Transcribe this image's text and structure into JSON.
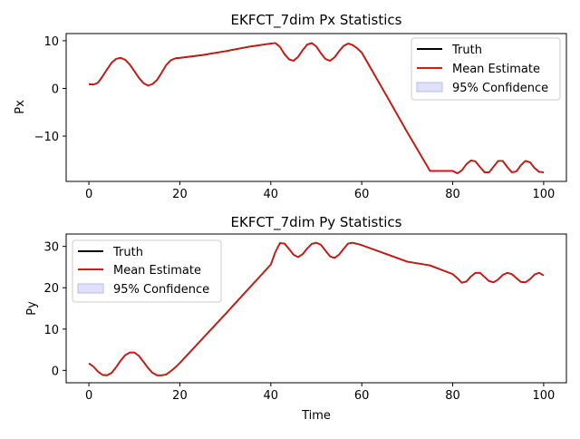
{
  "chart_data": [
    {
      "type": "line",
      "title": "EKFCT_7dim Px Statistics",
      "xlabel": "",
      "ylabel": "Px",
      "xlim": [
        -5,
        105
      ],
      "ylim": [
        -19.5,
        11.5
      ],
      "xticks": [
        0,
        20,
        40,
        60,
        80,
        100
      ],
      "yticks": [
        10,
        0,
        -10
      ],
      "ytick_labels": [
        "10",
        "0",
        "−10"
      ],
      "legend": {
        "placement": "top-right",
        "entries": [
          "Truth",
          "Mean Estimate",
          "95% Confidence"
        ]
      },
      "series": [
        {
          "name": "Truth",
          "color": "#000000",
          "x": [
            0,
            1,
            2,
            3,
            4,
            5,
            6,
            7,
            8,
            9,
            10,
            11,
            12,
            13,
            14,
            15,
            16,
            17,
            18,
            19,
            20,
            25,
            30,
            35,
            40,
            41,
            42,
            43,
            44,
            45,
            46,
            47,
            48,
            49,
            50,
            51,
            52,
            53,
            54,
            55,
            56,
            57,
            58,
            59,
            60,
            65,
            70,
            75,
            80,
            81,
            82,
            83,
            84,
            85,
            86,
            87,
            88,
            89,
            90,
            91,
            92,
            93,
            94,
            95,
            96,
            97,
            98,
            99,
            100
          ],
          "y": [
            0.9,
            0.8,
            1.2,
            2.5,
            4.0,
            5.4,
            6.2,
            6.4,
            6.0,
            5.0,
            3.6,
            2.2,
            1.1,
            0.6,
            0.9,
            1.8,
            3.3,
            4.9,
            5.9,
            6.3,
            6.4,
            7.0,
            7.8,
            8.7,
            9.4,
            9.5,
            8.7,
            7.2,
            6.1,
            5.8,
            6.6,
            8.0,
            9.2,
            9.5,
            8.8,
            7.4,
            6.2,
            5.8,
            6.5,
            7.8,
            8.9,
            9.4,
            9.1,
            8.4,
            7.5,
            -0.8,
            -9.2,
            -17.3,
            -17.3,
            -17.8,
            -17.2,
            -15.9,
            -15.1,
            -15.3,
            -16.5,
            -17.6,
            -17.6,
            -16.4,
            -15.2,
            -15.2,
            -16.5,
            -17.6,
            -17.4,
            -16.1,
            -15.2,
            -15.5,
            -16.7,
            -17.5,
            -17.6
          ]
        },
        {
          "name": "Mean Estimate",
          "color": "#e8120b",
          "x": [
            0,
            1,
            2,
            3,
            4,
            5,
            6,
            7,
            8,
            9,
            10,
            11,
            12,
            13,
            14,
            15,
            16,
            17,
            18,
            19,
            20,
            25,
            30,
            35,
            40,
            41,
            42,
            43,
            44,
            45,
            46,
            47,
            48,
            49,
            50,
            51,
            52,
            53,
            54,
            55,
            56,
            57,
            58,
            59,
            60,
            65,
            70,
            75,
            80,
            81,
            82,
            83,
            84,
            85,
            86,
            87,
            88,
            89,
            90,
            91,
            92,
            93,
            94,
            95,
            96,
            97,
            98,
            99,
            100
          ],
          "y": [
            0.9,
            0.8,
            1.2,
            2.5,
            4.0,
            5.4,
            6.2,
            6.4,
            6.0,
            5.0,
            3.6,
            2.2,
            1.1,
            0.6,
            0.9,
            1.8,
            3.3,
            4.9,
            5.9,
            6.3,
            6.4,
            7.0,
            7.8,
            8.7,
            9.4,
            9.5,
            8.7,
            7.2,
            6.1,
            5.8,
            6.6,
            8.0,
            9.2,
            9.5,
            8.8,
            7.4,
            6.2,
            5.8,
            6.5,
            7.8,
            8.9,
            9.4,
            9.1,
            8.4,
            7.5,
            -0.8,
            -9.2,
            -17.3,
            -17.3,
            -17.8,
            -17.2,
            -15.9,
            -15.1,
            -15.3,
            -16.5,
            -17.6,
            -17.6,
            -16.4,
            -15.2,
            -15.2,
            -16.5,
            -17.6,
            -17.4,
            -16.1,
            -15.2,
            -15.5,
            -16.7,
            -17.5,
            -17.6
          ]
        }
      ]
    },
    {
      "type": "line",
      "title": "EKFCT_7dim Py Statistics",
      "xlabel": "Time",
      "ylabel": "Py",
      "xlim": [
        -5,
        105
      ],
      "ylim": [
        -3.0,
        33.0
      ],
      "xticks": [
        0,
        20,
        40,
        60,
        80,
        100
      ],
      "yticks": [
        0,
        10,
        20,
        30
      ],
      "ytick_labels": [
        "0",
        "10",
        "20",
        "30"
      ],
      "legend": {
        "placement": "top-left",
        "entries": [
          "Truth",
          "Mean Estimate",
          "95% Confidence"
        ]
      },
      "series": [
        {
          "name": "Truth",
          "color": "#000000",
          "x": [
            0,
            1,
            2,
            3,
            4,
            5,
            6,
            7,
            8,
            9,
            10,
            11,
            12,
            13,
            14,
            15,
            16,
            17,
            18,
            19,
            20,
            25,
            30,
            35,
            40,
            41,
            42,
            43,
            44,
            45,
            46,
            47,
            48,
            49,
            50,
            51,
            52,
            53,
            54,
            55,
            56,
            57,
            58,
            59,
            60,
            65,
            70,
            75,
            80,
            81,
            82,
            83,
            84,
            85,
            86,
            87,
            88,
            89,
            90,
            91,
            92,
            93,
            94,
            95,
            96,
            97,
            98,
            99,
            100
          ],
          "y": [
            1.7,
            0.9,
            -0.3,
            -1.1,
            -1.2,
            -0.6,
            0.8,
            2.4,
            3.7,
            4.3,
            4.3,
            3.5,
            2.1,
            0.6,
            -0.6,
            -1.2,
            -1.2,
            -1.0,
            -0.2,
            0.7,
            1.8,
            7.7,
            13.6,
            19.6,
            25.6,
            28.6,
            30.8,
            30.7,
            29.4,
            28.0,
            27.4,
            28.1,
            29.5,
            30.6,
            30.9,
            30.4,
            29.0,
            27.6,
            27.2,
            28.0,
            29.4,
            30.7,
            30.9,
            30.6,
            30.3,
            28.3,
            26.3,
            25.4,
            23.3,
            22.3,
            21.2,
            21.5,
            22.7,
            23.6,
            23.6,
            22.6,
            21.6,
            21.3,
            22.0,
            23.1,
            23.6,
            23.3,
            22.3,
            21.4,
            21.3,
            22.1,
            23.2,
            23.6,
            23.0
          ]
        },
        {
          "name": "Mean Estimate",
          "color": "#e8120b",
          "x": [
            0,
            1,
            2,
            3,
            4,
            5,
            6,
            7,
            8,
            9,
            10,
            11,
            12,
            13,
            14,
            15,
            16,
            17,
            18,
            19,
            20,
            25,
            30,
            35,
            40,
            41,
            42,
            43,
            44,
            45,
            46,
            47,
            48,
            49,
            50,
            51,
            52,
            53,
            54,
            55,
            56,
            57,
            58,
            59,
            60,
            65,
            70,
            75,
            80,
            81,
            82,
            83,
            84,
            85,
            86,
            87,
            88,
            89,
            90,
            91,
            92,
            93,
            94,
            95,
            96,
            97,
            98,
            99,
            100
          ],
          "y": [
            1.7,
            0.9,
            -0.3,
            -1.1,
            -1.2,
            -0.6,
            0.8,
            2.4,
            3.7,
            4.3,
            4.3,
            3.5,
            2.1,
            0.6,
            -0.6,
            -1.2,
            -1.2,
            -1.0,
            -0.2,
            0.7,
            1.8,
            7.7,
            13.6,
            19.6,
            25.6,
            28.6,
            30.8,
            30.7,
            29.4,
            28.0,
            27.4,
            28.1,
            29.5,
            30.6,
            30.9,
            30.4,
            29.0,
            27.6,
            27.2,
            28.0,
            29.4,
            30.7,
            30.9,
            30.6,
            30.3,
            28.3,
            26.3,
            25.4,
            23.3,
            22.3,
            21.2,
            21.5,
            22.7,
            23.6,
            23.6,
            22.6,
            21.6,
            21.3,
            22.0,
            23.1,
            23.6,
            23.3,
            22.3,
            21.4,
            21.3,
            22.1,
            23.2,
            23.6,
            23.0
          ]
        }
      ]
    }
  ],
  "legend_style": {
    "truth_color": "#000000",
    "estimate_color": "#e8120b",
    "confidence_fill": "#e0e0fa",
    "confidence_edge": "#b8b8ee"
  }
}
